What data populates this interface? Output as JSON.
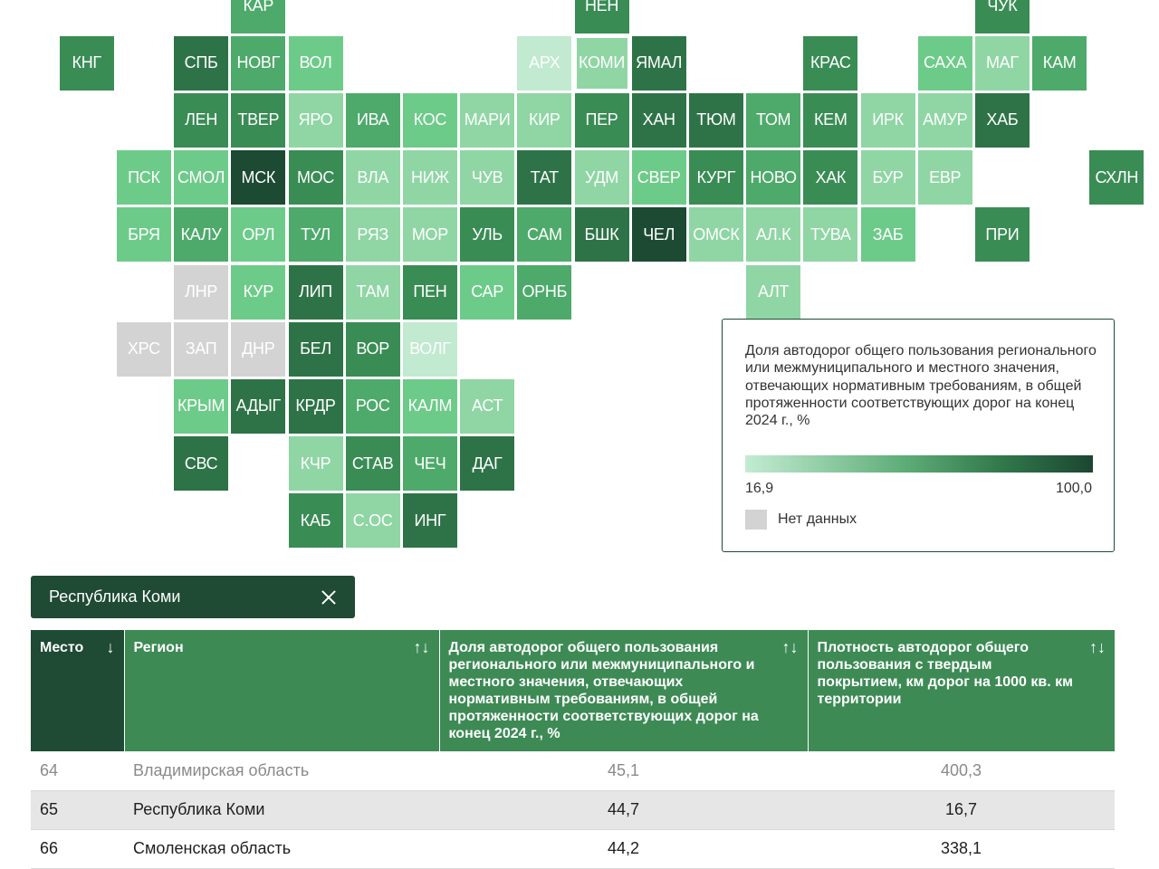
{
  "map": {
    "scale": {
      "min": 16.9,
      "max": 100.0
    },
    "colors": {
      "c1": "#c1ead0",
      "c2": "#8fd6a4",
      "c3": "#6dcb89",
      "c4": "#4eaa6b",
      "c5": "#3a8c55",
      "c6": "#2e7347",
      "c7": "#1c4a33",
      "none": "#d3d3d3"
    },
    "selected": "КОМИ",
    "tiles": [
      {
        "label": "КАР",
        "col": 4,
        "row": 0,
        "shade": "c4"
      },
      {
        "label": "НЕН",
        "col": 10,
        "row": 0,
        "shade": "c5"
      },
      {
        "label": "ЧУК",
        "col": 17,
        "row": 0,
        "shade": "c5"
      },
      {
        "label": "КНГ",
        "col": 1,
        "row": 1,
        "shade": "c5"
      },
      {
        "label": "СПБ",
        "col": 3,
        "row": 1,
        "shade": "c6"
      },
      {
        "label": "НОВГ",
        "col": 4,
        "row": 1,
        "shade": "c4"
      },
      {
        "label": "ВОЛ",
        "col": 5,
        "row": 1,
        "shade": "c3"
      },
      {
        "label": "АРХ",
        "col": 9,
        "row": 1,
        "shade": "c1"
      },
      {
        "label": "КОМИ",
        "col": 10,
        "row": 1,
        "shade": "c2"
      },
      {
        "label": "ЯМАЛ",
        "col": 11,
        "row": 1,
        "shade": "c6"
      },
      {
        "label": "КРАС",
        "col": 14,
        "row": 1,
        "shade": "c5"
      },
      {
        "label": "САХА",
        "col": 16,
        "row": 1,
        "shade": "c3"
      },
      {
        "label": "МАГ",
        "col": 17,
        "row": 1,
        "shade": "c2"
      },
      {
        "label": "КАМ",
        "col": 18,
        "row": 1,
        "shade": "c4"
      },
      {
        "label": "ЛЕН",
        "col": 3,
        "row": 2,
        "shade": "c5"
      },
      {
        "label": "ТВЕР",
        "col": 4,
        "row": 2,
        "shade": "c5"
      },
      {
        "label": "ЯРО",
        "col": 5,
        "row": 2,
        "shade": "c2"
      },
      {
        "label": "ИВА",
        "col": 6,
        "row": 2,
        "shade": "c4"
      },
      {
        "label": "КОС",
        "col": 7,
        "row": 2,
        "shade": "c3"
      },
      {
        "label": "МАРИ",
        "col": 8,
        "row": 2,
        "shade": "c2"
      },
      {
        "label": "КИР",
        "col": 9,
        "row": 2,
        "shade": "c2"
      },
      {
        "label": "ПЕР",
        "col": 10,
        "row": 2,
        "shade": "c5"
      },
      {
        "label": "ХАН",
        "col": 11,
        "row": 2,
        "shade": "c6"
      },
      {
        "label": "ТЮМ",
        "col": 12,
        "row": 2,
        "shade": "c6"
      },
      {
        "label": "ТОМ",
        "col": 13,
        "row": 2,
        "shade": "c4"
      },
      {
        "label": "КЕМ",
        "col": 14,
        "row": 2,
        "shade": "c5"
      },
      {
        "label": "ИРК",
        "col": 15,
        "row": 2,
        "shade": "c2"
      },
      {
        "label": "АМУР",
        "col": 16,
        "row": 2,
        "shade": "c2"
      },
      {
        "label": "ХАБ",
        "col": 17,
        "row": 2,
        "shade": "c6"
      },
      {
        "label": "ПСК",
        "col": 2,
        "row": 3,
        "shade": "c3"
      },
      {
        "label": "СМОЛ",
        "col": 3,
        "row": 3,
        "shade": "c3"
      },
      {
        "label": "МСК",
        "col": 4,
        "row": 3,
        "shade": "c7"
      },
      {
        "label": "МОС",
        "col": 5,
        "row": 3,
        "shade": "c5"
      },
      {
        "label": "ВЛА",
        "col": 6,
        "row": 3,
        "shade": "c2"
      },
      {
        "label": "НИЖ",
        "col": 7,
        "row": 3,
        "shade": "c2"
      },
      {
        "label": "ЧУВ",
        "col": 8,
        "row": 3,
        "shade": "c2"
      },
      {
        "label": "ТАТ",
        "col": 9,
        "row": 3,
        "shade": "c6"
      },
      {
        "label": "УДМ",
        "col": 10,
        "row": 3,
        "shade": "c2"
      },
      {
        "label": "СВЕР",
        "col": 11,
        "row": 3,
        "shade": "c3"
      },
      {
        "label": "КУРГ",
        "col": 12,
        "row": 3,
        "shade": "c5"
      },
      {
        "label": "НОВО",
        "col": 13,
        "row": 3,
        "shade": "c4"
      },
      {
        "label": "ХАК",
        "col": 14,
        "row": 3,
        "shade": "c5"
      },
      {
        "label": "БУР",
        "col": 15,
        "row": 3,
        "shade": "c2"
      },
      {
        "label": "ЕВР",
        "col": 16,
        "row": 3,
        "shade": "c2"
      },
      {
        "label": "СХЛН",
        "col": 19,
        "row": 3,
        "shade": "c5"
      },
      {
        "label": "БРЯ",
        "col": 2,
        "row": 4,
        "shade": "c3"
      },
      {
        "label": "КАЛУ",
        "col": 3,
        "row": 4,
        "shade": "c4"
      },
      {
        "label": "ОРЛ",
        "col": 4,
        "row": 4,
        "shade": "c3"
      },
      {
        "label": "ТУЛ",
        "col": 5,
        "row": 4,
        "shade": "c4"
      },
      {
        "label": "РЯЗ",
        "col": 6,
        "row": 4,
        "shade": "c2"
      },
      {
        "label": "МОР",
        "col": 7,
        "row": 4,
        "shade": "c2"
      },
      {
        "label": "УЛЬ",
        "col": 8,
        "row": 4,
        "shade": "c5"
      },
      {
        "label": "САМ",
        "col": 9,
        "row": 4,
        "shade": "c4"
      },
      {
        "label": "БШК",
        "col": 10,
        "row": 4,
        "shade": "c6"
      },
      {
        "label": "ЧЕЛ",
        "col": 11,
        "row": 4,
        "shade": "c7"
      },
      {
        "label": "ОМСК",
        "col": 12,
        "row": 4,
        "shade": "c2"
      },
      {
        "label": "АЛ.К",
        "col": 13,
        "row": 4,
        "shade": "c2"
      },
      {
        "label": "ТУВА",
        "col": 14,
        "row": 4,
        "shade": "c2"
      },
      {
        "label": "ЗАБ",
        "col": 15,
        "row": 4,
        "shade": "c3"
      },
      {
        "label": "ПРИ",
        "col": 17,
        "row": 4,
        "shade": "c5"
      },
      {
        "label": "ЛНР",
        "col": 3,
        "row": 5,
        "shade": "none"
      },
      {
        "label": "КУР",
        "col": 4,
        "row": 5,
        "shade": "c3"
      },
      {
        "label": "ЛИП",
        "col": 5,
        "row": 5,
        "shade": "c6"
      },
      {
        "label": "ТАМ",
        "col": 6,
        "row": 5,
        "shade": "c2"
      },
      {
        "label": "ПЕН",
        "col": 7,
        "row": 5,
        "shade": "c5"
      },
      {
        "label": "САР",
        "col": 8,
        "row": 5,
        "shade": "c3"
      },
      {
        "label": "ОРНБ",
        "col": 9,
        "row": 5,
        "shade": "c4"
      },
      {
        "label": "АЛТ",
        "col": 13,
        "row": 5,
        "shade": "c2"
      },
      {
        "label": "ХРС",
        "col": 2,
        "row": 6,
        "shade": "none"
      },
      {
        "label": "ЗАП",
        "col": 3,
        "row": 6,
        "shade": "none"
      },
      {
        "label": "ДНР",
        "col": 4,
        "row": 6,
        "shade": "none"
      },
      {
        "label": "БЕЛ",
        "col": 5,
        "row": 6,
        "shade": "c6"
      },
      {
        "label": "ВОР",
        "col": 6,
        "row": 6,
        "shade": "c5"
      },
      {
        "label": "ВОЛГ",
        "col": 7,
        "row": 6,
        "shade": "c1"
      },
      {
        "label": "КРЫМ",
        "col": 3,
        "row": 7,
        "shade": "c3"
      },
      {
        "label": "АДЫГ",
        "col": 4,
        "row": 7,
        "shade": "c6"
      },
      {
        "label": "КРДР",
        "col": 5,
        "row": 7,
        "shade": "c6"
      },
      {
        "label": "РОС",
        "col": 6,
        "row": 7,
        "shade": "c4"
      },
      {
        "label": "КАЛМ",
        "col": 7,
        "row": 7,
        "shade": "c3"
      },
      {
        "label": "АСТ",
        "col": 8,
        "row": 7,
        "shade": "c2"
      },
      {
        "label": "СВС",
        "col": 3,
        "row": 8,
        "shade": "c6"
      },
      {
        "label": "КЧР",
        "col": 5,
        "row": 8,
        "shade": "c2"
      },
      {
        "label": "СТАВ",
        "col": 6,
        "row": 8,
        "shade": "c5"
      },
      {
        "label": "ЧЕЧ",
        "col": 7,
        "row": 8,
        "shade": "c4"
      },
      {
        "label": "ДАГ",
        "col": 8,
        "row": 8,
        "shade": "c6"
      },
      {
        "label": "КАБ",
        "col": 5,
        "row": 9,
        "shade": "c5"
      },
      {
        "label": "С.ОС",
        "col": 6,
        "row": 9,
        "shade": "c2"
      },
      {
        "label": "ИНГ",
        "col": 7,
        "row": 9,
        "shade": "c6"
      }
    ]
  },
  "legend": {
    "title": "Доля автодорог общего пользования регионального или межмуниципального и местного значения, отвечающих нормативным требованиям, в общей протяженности соответствующих дорог на конец 2024 г., %",
    "min_label": "16,9",
    "max_label": "100,0",
    "nodata_label": "Нет данных"
  },
  "chip": {
    "label": "Республика Коми"
  },
  "table": {
    "headers": {
      "place": "Место",
      "region": "Регион",
      "share": "Доля автодорог общего пользования регионального или межмуниципального и местного значения, отвечающих нормативным требованиям, в общей протяженности соответствующих дорог на конец 2024 г., %",
      "density": "Плотность автодорог общего пользования с твердым покрытием, км дорог на 1000 кв. км территории"
    },
    "sort_desc_icon": "↓",
    "sort_both_icon": "↑↓",
    "rows": [
      {
        "place": "64",
        "region": "Владимирская область",
        "share": "45,1",
        "density": "400,3"
      },
      {
        "place": "65",
        "region": "Республика Коми",
        "share": "44,7",
        "density": "16,7"
      },
      {
        "place": "66",
        "region": "Смоленская область",
        "share": "44,2",
        "density": "338,1"
      }
    ]
  }
}
